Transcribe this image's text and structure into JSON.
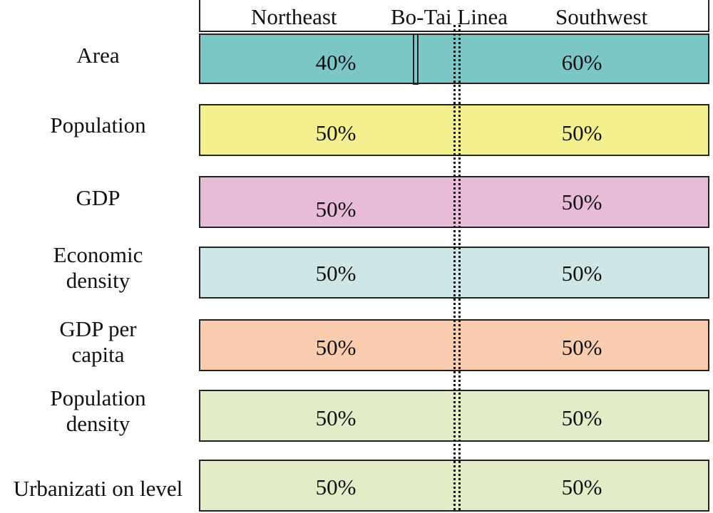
{
  "header": {
    "northeast": "Northeast",
    "line": "Bo-Tai Linea",
    "southwest": "Southwest"
  },
  "colors": {
    "area": "#7cc6c6",
    "population": "#f3f08f",
    "gdp": "#e8bcd8",
    "economic_density": "#cfe6e6",
    "gdp_per_capita": "#f9ccb0",
    "population_density": "#e2ecc6",
    "urbanization": "#e2ecc6"
  },
  "rows": [
    {
      "label_lines": [
        "Area"
      ],
      "northeast": "40%",
      "southwest": "60%"
    },
    {
      "label_lines": [
        "Population"
      ],
      "northeast": "50%",
      "southwest": "50%"
    },
    {
      "label_lines": [
        "GDP"
      ],
      "northeast": "50%",
      "southwest": "50%"
    },
    {
      "label_lines": [
        "Economic",
        "density"
      ],
      "northeast": "50%",
      "southwest": "50%"
    },
    {
      "label_lines": [
        "GDP per",
        "capita"
      ],
      "northeast": "50%",
      "southwest": "50%"
    },
    {
      "label_lines": [
        "Population",
        "density"
      ],
      "northeast": "50%",
      "southwest": "50%"
    },
    {
      "label_lines": [
        "Urbanizati on level"
      ],
      "northeast": "50%",
      "southwest": "50%"
    }
  ]
}
